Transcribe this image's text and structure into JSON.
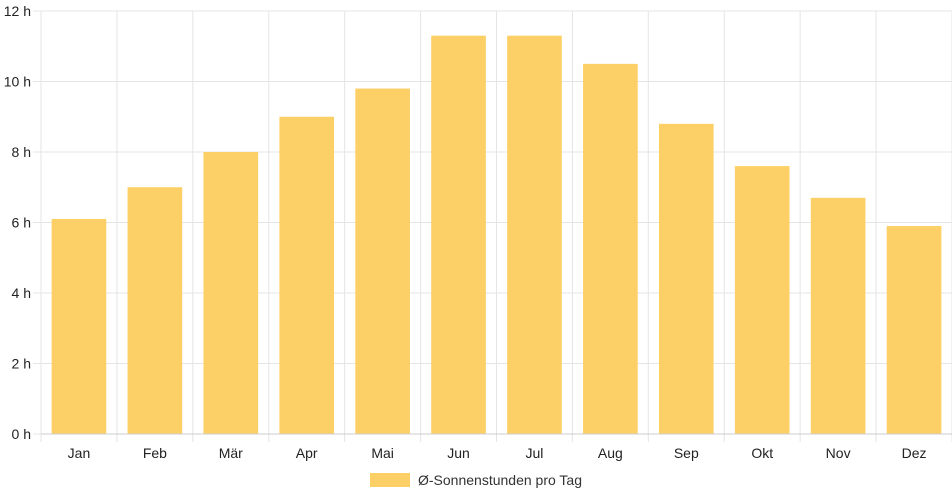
{
  "chart_data": {
    "type": "bar",
    "categories": [
      "Jan",
      "Feb",
      "Mär",
      "Apr",
      "Mai",
      "Jun",
      "Jul",
      "Aug",
      "Sep",
      "Okt",
      "Nov",
      "Dez"
    ],
    "series": [
      {
        "name": "Ø-Sonnenstunden pro Tag",
        "values": [
          6.1,
          7.0,
          8.0,
          9.0,
          9.8,
          11.3,
          11.3,
          10.5,
          8.8,
          7.6,
          6.7,
          5.9
        ],
        "color": "#fdd067"
      }
    ],
    "yticks": [
      0,
      2,
      4,
      6,
      8,
      10,
      12
    ],
    "ytick_suffix": " h",
    "ylim": [
      0,
      12
    ],
    "grid": true,
    "legend_position": "bottom"
  }
}
